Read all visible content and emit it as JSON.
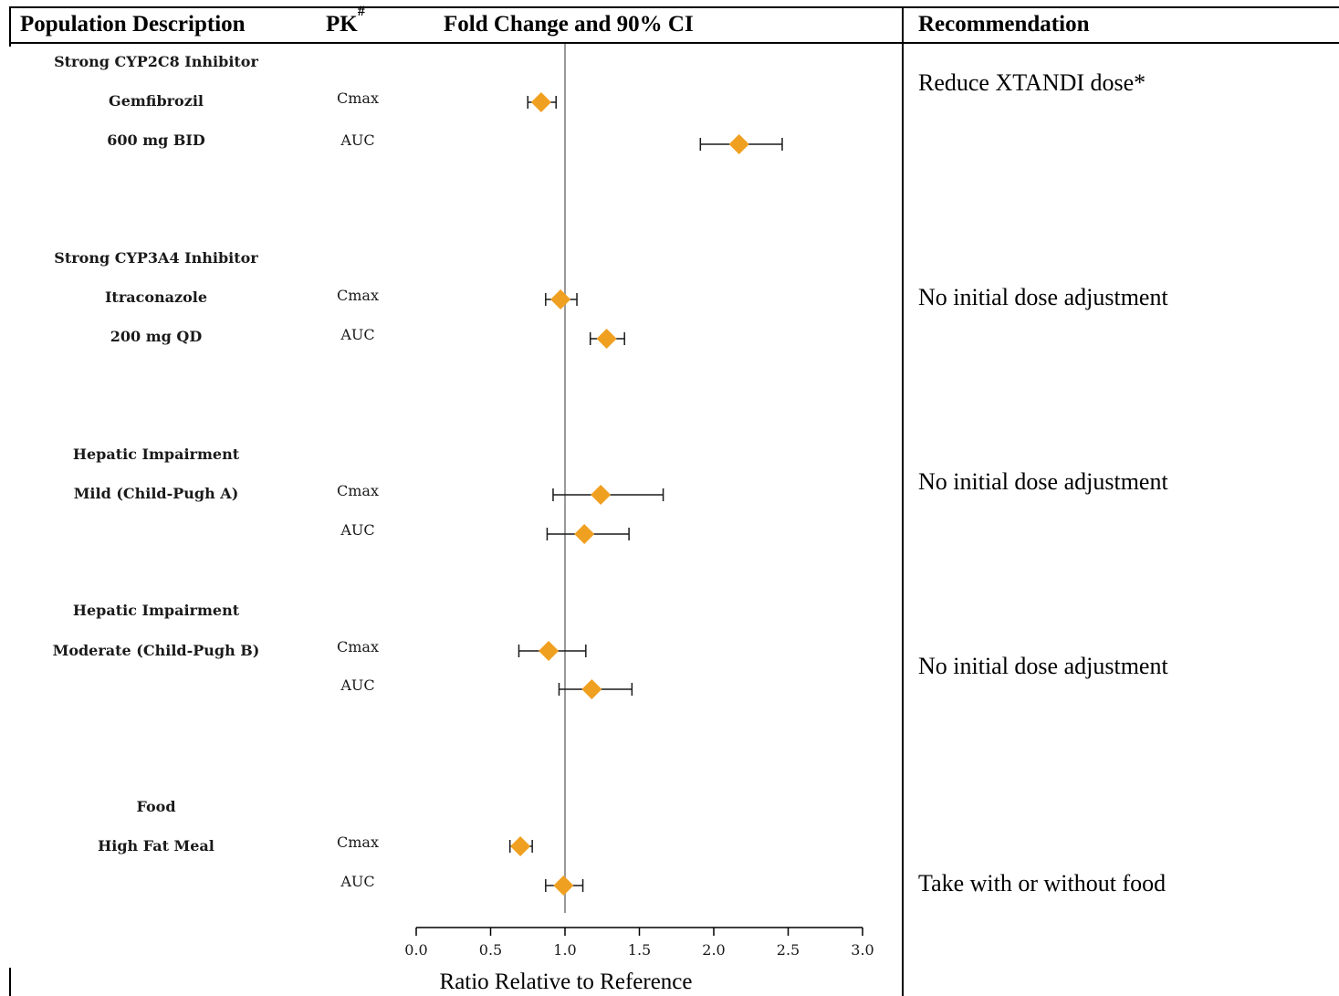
{
  "headers": {
    "population": "Population Description",
    "pk": "PK",
    "pk_sup": "#",
    "fold": "Fold Change and 90% CI",
    "recommendation": "Recommendation"
  },
  "chart_data": {
    "type": "forest",
    "xlabel": "Ratio Relative to Reference",
    "xlim": [
      0.0,
      3.0
    ],
    "xticks": [
      "0.0",
      "0.5",
      "1.0",
      "1.5",
      "2.0",
      "2.5",
      "3.0"
    ],
    "reference_line": 1.0,
    "marker_color": "#F0A020",
    "groups": [
      {
        "labels": [
          "Strong CYP2C8 Inhibitor",
          "Gemfibrozil",
          "600 mg BID"
        ],
        "rows": [
          {
            "pk": "Cmax",
            "estimate": 0.84,
            "lower": 0.75,
            "upper": 0.94
          },
          {
            "pk": "AUC",
            "estimate": 2.17,
            "lower": 1.91,
            "upper": 2.46
          }
        ],
        "recommendation": "Reduce XTANDI dose*"
      },
      {
        "labels": [
          "Strong CYP3A4 Inhibitor",
          "Itraconazole",
          "200 mg QD"
        ],
        "rows": [
          {
            "pk": "Cmax",
            "estimate": 0.97,
            "lower": 0.87,
            "upper": 1.08
          },
          {
            "pk": "AUC",
            "estimate": 1.28,
            "lower": 1.17,
            "upper": 1.4
          }
        ],
        "recommendation": "No initial dose adjustment"
      },
      {
        "labels": [
          "Hepatic Impairment",
          "Mild (Child-Pugh A)"
        ],
        "rows": [
          {
            "pk": "Cmax",
            "estimate": 1.24,
            "lower": 0.92,
            "upper": 1.66
          },
          {
            "pk": "AUC",
            "estimate": 1.13,
            "lower": 0.88,
            "upper": 1.43
          }
        ],
        "recommendation": "No initial dose adjustment"
      },
      {
        "labels": [
          "Hepatic Impairment",
          "Moderate (Child-Pugh B)"
        ],
        "rows": [
          {
            "pk": "Cmax",
            "estimate": 0.89,
            "lower": 0.69,
            "upper": 1.14
          },
          {
            "pk": "AUC",
            "estimate": 1.18,
            "lower": 0.96,
            "upper": 1.45
          }
        ],
        "recommendation": "No initial dose adjustment"
      },
      {
        "labels": [
          "Food",
          "High Fat Meal"
        ],
        "rows": [
          {
            "pk": "Cmax",
            "estimate": 0.7,
            "lower": 0.63,
            "upper": 0.78
          },
          {
            "pk": "AUC",
            "estimate": 0.99,
            "lower": 0.87,
            "upper": 1.12
          }
        ],
        "recommendation": "Take with or without food"
      }
    ]
  }
}
